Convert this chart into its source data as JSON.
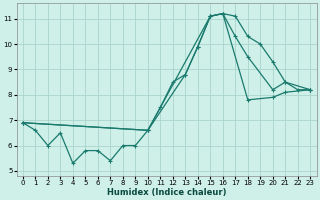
{
  "xlabel": "Humidex (Indice chaleur)",
  "bg_color": "#cef0e8",
  "grid_color": "#aad4cc",
  "line_color": "#1a7a6e",
  "xlim": [
    -0.5,
    23.5
  ],
  "ylim": [
    4.8,
    11.6
  ],
  "xticks": [
    0,
    1,
    2,
    3,
    4,
    5,
    6,
    7,
    8,
    9,
    10,
    11,
    12,
    13,
    14,
    15,
    16,
    17,
    18,
    19,
    20,
    21,
    22,
    23
  ],
  "yticks": [
    5,
    6,
    7,
    8,
    9,
    10,
    11
  ],
  "line1_x": [
    0,
    1,
    2,
    3,
    4,
    5,
    6,
    7,
    8,
    9,
    10,
    11,
    12,
    13,
    14,
    15,
    16,
    17,
    18,
    19,
    20,
    21,
    22,
    23
  ],
  "line1_y": [
    6.9,
    6.6,
    6.0,
    6.5,
    5.3,
    5.8,
    5.8,
    5.4,
    6.0,
    6.0,
    6.6,
    7.5,
    8.5,
    8.8,
    9.9,
    11.1,
    11.2,
    11.1,
    10.3,
    10.0,
    9.3,
    8.5,
    8.2,
    8.2
  ],
  "line2_x": [
    0,
    10,
    13,
    14,
    15,
    16,
    17,
    18,
    20,
    21,
    23
  ],
  "line2_y": [
    6.9,
    6.6,
    8.8,
    9.9,
    11.1,
    11.2,
    10.3,
    9.5,
    8.2,
    8.5,
    8.2
  ],
  "line3_x": [
    0,
    10,
    15,
    16,
    18,
    20,
    21,
    23
  ],
  "line3_y": [
    6.9,
    6.6,
    11.1,
    11.2,
    7.8,
    7.9,
    8.1,
    8.2
  ]
}
